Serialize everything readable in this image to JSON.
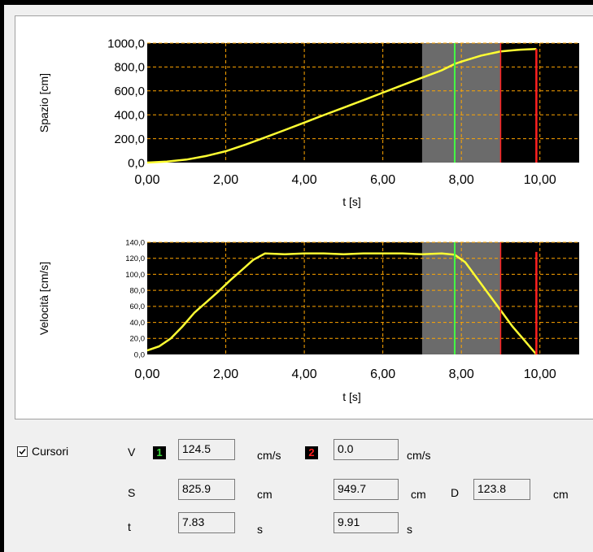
{
  "chart_data": [
    {
      "type": "line",
      "ylabel": "Spazio [cm]",
      "xlabel": "t [s]",
      "xlim": [
        0,
        11
      ],
      "ylim": [
        0,
        1000
      ],
      "xticks": [
        "0,00",
        "2,00",
        "4,00",
        "6,00",
        "8,00",
        "10,00"
      ],
      "yticks": [
        "0,0",
        "200,0",
        "400,0",
        "600,0",
        "800,0",
        "1000,0"
      ],
      "grid": true,
      "background": "#000000",
      "grid_color": "#ffa500",
      "line_color": "#ffff33",
      "selection": [
        7.0,
        9.0
      ],
      "cursor1": 7.83,
      "cursor2": 9.91,
      "x": [
        0,
        0.5,
        1,
        1.5,
        2,
        2.5,
        3,
        3.5,
        4,
        4.5,
        5,
        5.5,
        6,
        6.5,
        7,
        7.5,
        7.83,
        8,
        8.5,
        9,
        9.5,
        9.91
      ],
      "y": [
        0,
        8,
        25,
        55,
        95,
        150,
        210,
        272,
        335,
        398,
        460,
        522,
        585,
        648,
        710,
        772,
        826,
        845,
        895,
        930,
        945,
        950
      ]
    },
    {
      "type": "line",
      "ylabel": "Velocità [cm/s]",
      "xlabel": "t [s]",
      "xlim": [
        0,
        11
      ],
      "ylim": [
        0,
        140
      ],
      "xticks": [
        "0,00",
        "2,00",
        "4,00",
        "6,00",
        "8,00",
        "10,00"
      ],
      "yticks": [
        "0,0",
        "20,0",
        "40,0",
        "60,0",
        "80,0",
        "100,0",
        "120,0",
        "140,0"
      ],
      "grid": true,
      "background": "#000000",
      "grid_color": "#ffa500",
      "line_color": "#ffff33",
      "selection": [
        7.0,
        9.0
      ],
      "cursor1": 7.83,
      "cursor2": 9.91,
      "x": [
        0,
        0.3,
        0.6,
        0.9,
        1.2,
        1.5,
        1.8,
        2.1,
        2.4,
        2.7,
        3.0,
        3.5,
        4,
        4.5,
        5,
        5.5,
        6,
        6.5,
        7,
        7.5,
        7.83,
        8.1,
        8.4,
        8.7,
        9.0,
        9.3,
        9.6,
        9.91
      ],
      "y": [
        5,
        10,
        20,
        35,
        52,
        65,
        78,
        92,
        105,
        118,
        126,
        125,
        126,
        126,
        125,
        126,
        126,
        126,
        125,
        126,
        124.5,
        115,
        95,
        75,
        55,
        35,
        18,
        0
      ]
    }
  ],
  "controls": {
    "cursors_label": "Cursori",
    "row_v_label": "V",
    "row_s_label": "S",
    "row_t_label": "t",
    "badge1": "1",
    "badge2": "2",
    "v1": "124.5",
    "v2": "0.0",
    "v_unit1": "cm/s",
    "v_unit2": "cm/s",
    "s1": "825.9",
    "s2": "949.7",
    "s_unit1": "cm",
    "s_unit2": "cm",
    "d_label": "D",
    "d_value": "123.8",
    "d_unit": "cm",
    "t1": "7.83",
    "t2": "9.91",
    "t_unit1": "s",
    "t_unit2": "s"
  }
}
